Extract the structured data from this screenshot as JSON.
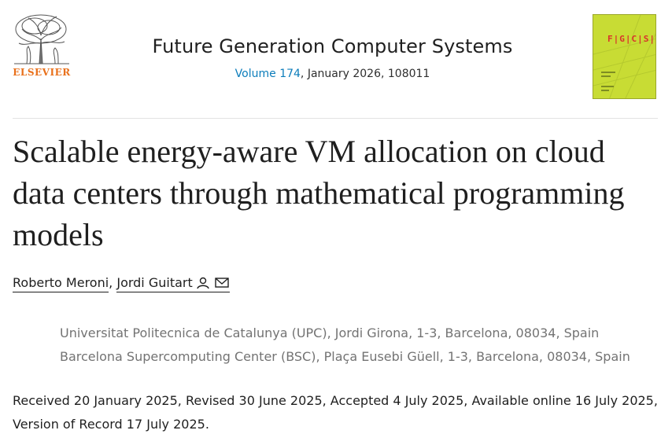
{
  "publisher": {
    "name": "ELSEVIER"
  },
  "journal": {
    "title": "Future Generation Computer Systems",
    "volume_link": "Volume 174",
    "issue_info": ", January 2026, 108011",
    "cover_brand": "F|G|C|S|"
  },
  "article": {
    "title": "Scalable energy-aware VM allocation on cloud data centers through mathematical programming models"
  },
  "authors": [
    {
      "name": "Roberto Meroni"
    },
    {
      "name": "Jordi Guitart"
    }
  ],
  "author_separator": ", ",
  "affiliations": [
    "Universitat Politecnica de Catalunya (UPC), Jordi Girona, 1-3, Barcelona, 08034, Spain",
    "Barcelona Supercomputing Center (BSC), Plaça Eusebi Güell, 1-3, Barcelona, 08034, Spain"
  ],
  "dates": "Received 20 January 2025, Revised 30 June 2025, Accepted 4 July 2025, Available online 16 July 2025, Version of Record 17 July 2025.",
  "colors": {
    "link": "#0c7dbb",
    "publisher": "#e9711c",
    "cover": "#c8dc34"
  },
  "icons": {
    "author_person": "person-icon",
    "author_email": "envelope-icon"
  }
}
